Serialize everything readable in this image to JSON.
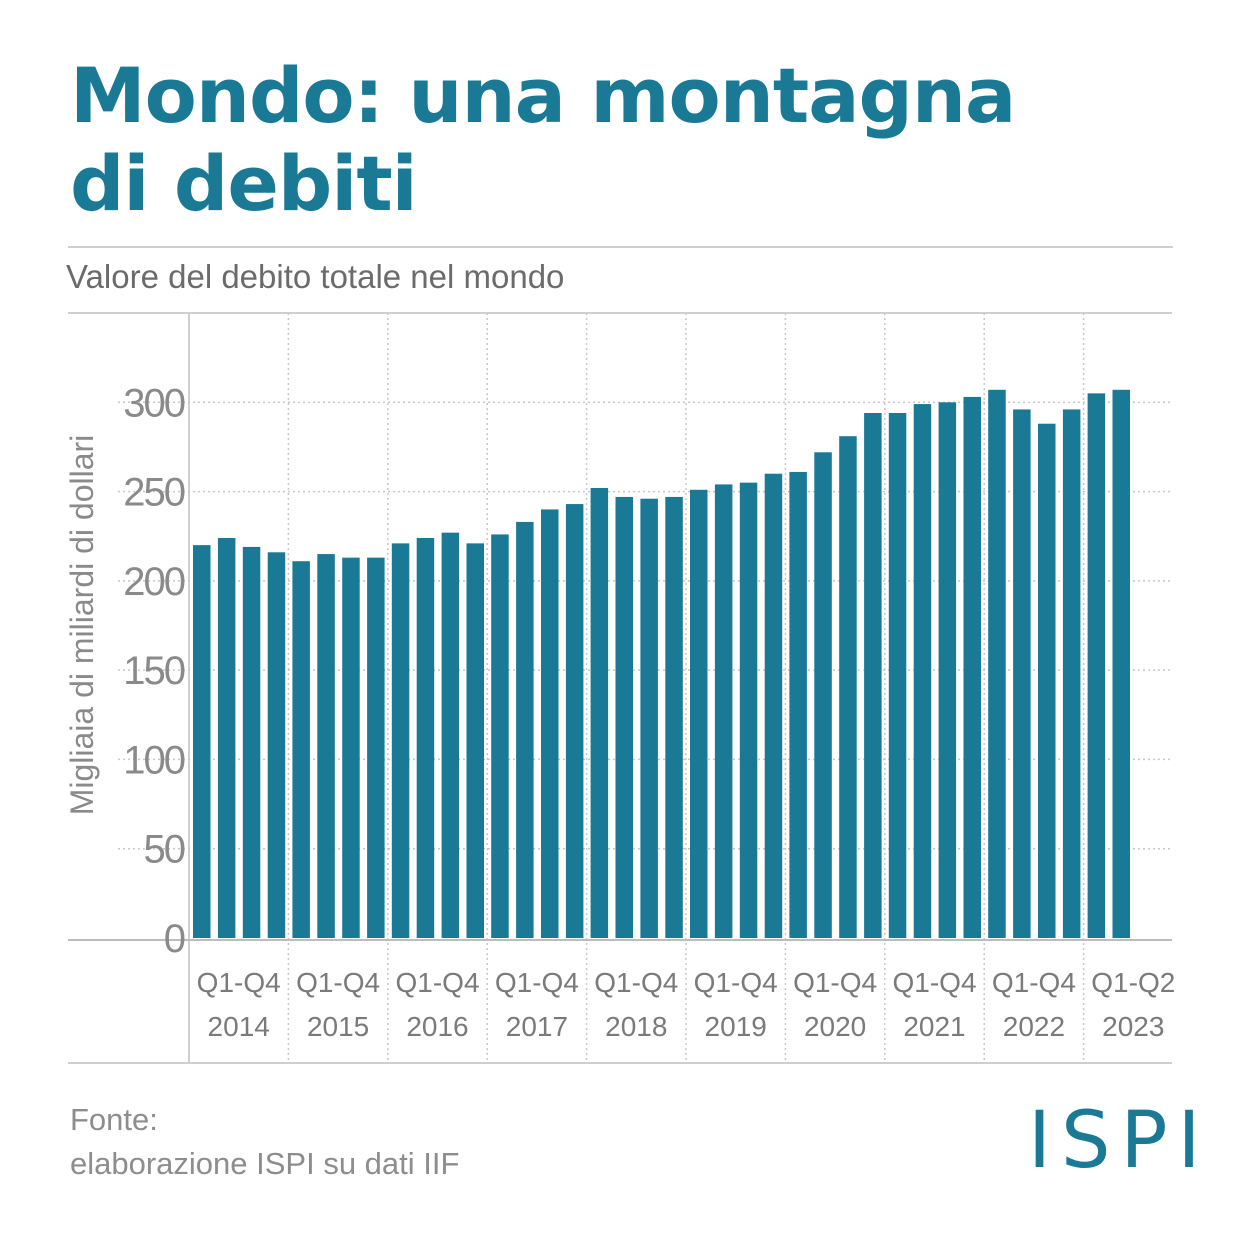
{
  "title_line1": "Mondo: una montagna",
  "title_line2": "di debiti",
  "subtitle": "Valore del debito totale nel mondo",
  "source_line1": "Fonte:",
  "source_line2": "elaborazione ISPI su dati IIF",
  "logo_text": "ISPI",
  "colors": {
    "accent": "#1a7a96",
    "bar": "#1a7a96",
    "grid": "#c8c8c8",
    "text": "#7a7a7a"
  },
  "chart_data": {
    "type": "bar",
    "ylabel": "Migliaia di miliardi di dollari",
    "ylim": [
      0,
      350
    ],
    "yticks": [
      0,
      50,
      100,
      150,
      200,
      250,
      300
    ],
    "grid": true,
    "groups": [
      {
        "period": "Q1-Q4",
        "year": "2014",
        "values": [
          220,
          224,
          219,
          216
        ]
      },
      {
        "period": "Q1-Q4",
        "year": "2015",
        "values": [
          211,
          215,
          213,
          213
        ]
      },
      {
        "period": "Q1-Q4",
        "year": "2016",
        "values": [
          221,
          224,
          227,
          221
        ]
      },
      {
        "period": "Q1-Q4",
        "year": "2017",
        "values": [
          226,
          233,
          240,
          243
        ]
      },
      {
        "period": "Q1-Q4",
        "year": "2018",
        "values": [
          252,
          247,
          246,
          247
        ]
      },
      {
        "period": "Q1-Q4",
        "year": "2019",
        "values": [
          251,
          254,
          255,
          260
        ]
      },
      {
        "period": "Q1-Q4",
        "year": "2020",
        "values": [
          261,
          272,
          281,
          294
        ]
      },
      {
        "period": "Q1-Q4",
        "year": "2021",
        "values": [
          294,
          299,
          300,
          303
        ]
      },
      {
        "period": "Q1-Q4",
        "year": "2022",
        "values": [
          307,
          296,
          288,
          296
        ]
      },
      {
        "period": "Q1-Q2",
        "year": "2023",
        "values": [
          305,
          307
        ]
      }
    ]
  }
}
